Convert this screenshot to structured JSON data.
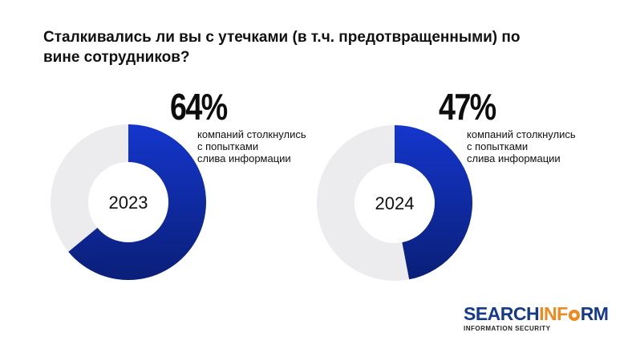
{
  "title": "Сталкивались ли вы с утечками (в т.ч. предотвращенными) по вине сотрудников?",
  "chart_data": [
    {
      "type": "pie",
      "label": "2023",
      "value": 64,
      "value_label": "64%",
      "description": [
        "компаний столкнулись",
        "с попытками",
        "слива информации"
      ],
      "remainder": 36
    },
    {
      "type": "pie",
      "label": "2024",
      "value": 47,
      "value_label": "47%",
      "description": [
        "компаний столкнулись",
        "с попытками",
        "слива информации"
      ],
      "remainder": 53
    }
  ],
  "colors": {
    "accent_light": "#1436cc",
    "accent_dark": "#0a1f78",
    "track": "#ececee",
    "logo_blue": "#153a8c",
    "logo_orange": "#f08a1c"
  },
  "logo": {
    "brand_part1": "SEARCH",
    "brand_part2": "INF",
    "brand_part3": "RM",
    "tagline": "INFORMATION SECURITY"
  }
}
